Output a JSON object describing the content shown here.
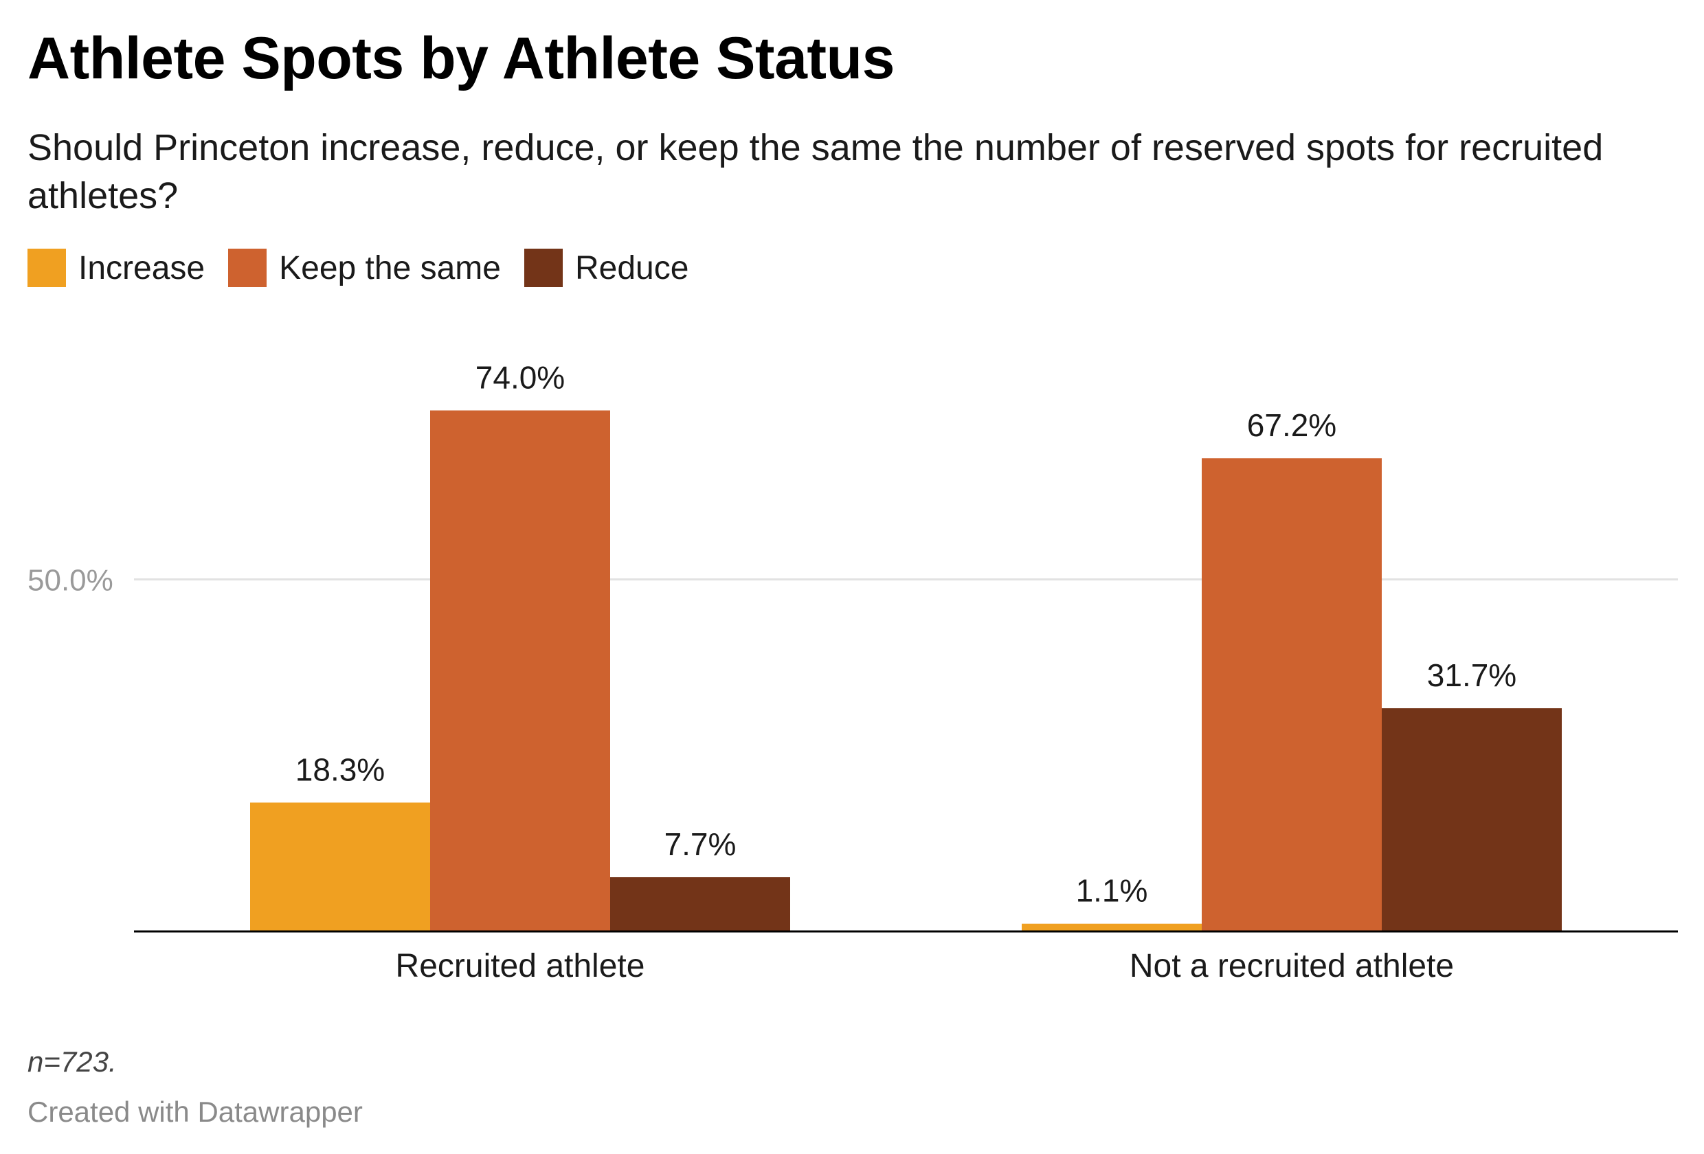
{
  "chart_data": {
    "type": "bar",
    "title": "Athlete Spots by Athlete Status",
    "subtitle": "Should Princeton increase, reduce, or keep the same the number of reserved spots for recruited athletes?",
    "categories": [
      "Recruited athlete",
      "Not a recruited athlete"
    ],
    "series": [
      {
        "name": "Increase",
        "color": "#f0a021",
        "values": [
          18.3,
          1.1
        ],
        "labels": [
          "18.3%",
          "1.1%"
        ]
      },
      {
        "name": "Keep the same",
        "color": "#ce622f",
        "values": [
          74.0,
          67.2
        ],
        "labels": [
          "74.0%",
          "67.2%"
        ]
      },
      {
        "name": "Reduce",
        "color": "#733418",
        "values": [
          7.7,
          31.7
        ],
        "labels": [
          "7.7%",
          "31.7%"
        ]
      }
    ],
    "ylim": [
      0,
      80
    ],
    "gridlines": [
      {
        "value": 50,
        "label": "50.0%"
      }
    ],
    "legend_position": "top-left",
    "xlabel": "",
    "ylabel": ""
  },
  "footer": {
    "note": "n=723.",
    "credit": "Created with Datawrapper"
  }
}
